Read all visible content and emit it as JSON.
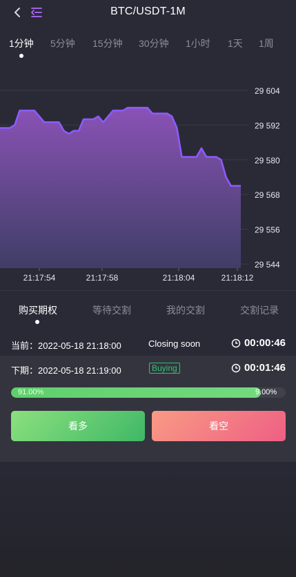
{
  "header": {
    "title": "BTC/USDT-1M"
  },
  "intervals": [
    {
      "label": "1分钟",
      "active": true
    },
    {
      "label": "5分钟",
      "active": false
    },
    {
      "label": "15分钟",
      "active": false
    },
    {
      "label": "30分钟",
      "active": false
    },
    {
      "label": "1小时",
      "active": false
    },
    {
      "label": "1天",
      "active": false
    },
    {
      "label": "1周",
      "active": false
    }
  ],
  "chart_data": {
    "type": "area",
    "y_ticks": [
      "29 604",
      "29 592",
      "29 580",
      "29 568",
      "29 556",
      "29 544"
    ],
    "x_ticks": [
      "21:17:54",
      "21:17:58",
      "21:18:04",
      "21:18:12"
    ],
    "ylim": [
      29544,
      29604
    ],
    "series": [
      {
        "values": [
          29591,
          29591,
          29591,
          29592,
          29597,
          29597,
          29597,
          29597,
          29595,
          29593,
          29593,
          29593,
          29593,
          29590,
          29589,
          29590,
          29590,
          29594,
          29594,
          29594,
          29595,
          29593,
          29595,
          29597,
          29597,
          29597,
          29598,
          29598,
          29598,
          29598,
          29598,
          29596,
          29596,
          29596,
          29596,
          29595,
          29591,
          29581,
          29581,
          29581,
          29581,
          29584,
          29581,
          29581,
          29581,
          29580,
          29574,
          29571,
          29571,
          29571
        ]
      }
    ],
    "colors": {
      "line": "#8c5cff",
      "fill_top": "#8a52b6",
      "fill_bottom": "#3f3e66"
    },
    "grid": true
  },
  "subtabs": [
    {
      "label": "购买期权",
      "active": true
    },
    {
      "label": "等待交割",
      "active": false
    },
    {
      "label": "我的交割",
      "active": false
    },
    {
      "label": "交割记录",
      "active": false
    }
  ],
  "current": {
    "label": "当前：2022-05-18 21:18:00",
    "status": "Closing soon",
    "timer": "00:00:46"
  },
  "next": {
    "label": "下期：2022-05-18 21:19:00",
    "status": "Buying",
    "timer": "00:01:46"
  },
  "ratio": {
    "left": "91.00%",
    "right": "9.00%",
    "left_fraction": 0.91
  },
  "buttons": {
    "up": "看多",
    "down": "看空"
  },
  "colors": {
    "accent": "#b06cff",
    "up": "#4cc76a",
    "down": "#ef6a82",
    "badge": "#2fc36f"
  }
}
